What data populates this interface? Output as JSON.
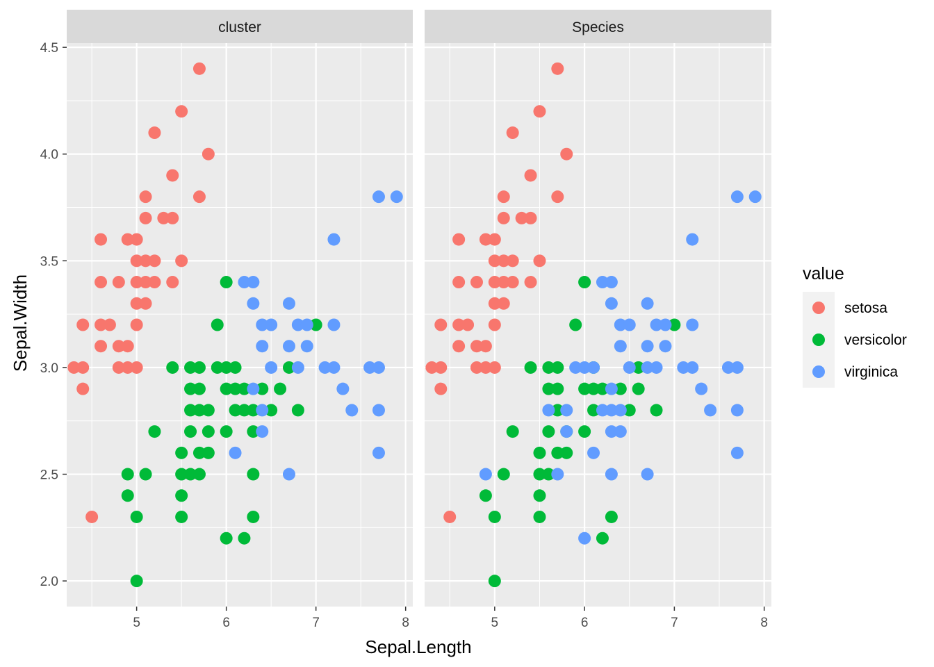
{
  "chart_data": {
    "type": "scatter",
    "xlabel": "Sepal.Length",
    "ylabel": "Sepal.Width",
    "xlim": [
      4.22,
      8.08
    ],
    "ylim": [
      1.88,
      4.52
    ],
    "x_ticks": [
      5,
      6,
      7,
      8
    ],
    "y_ticks": [
      "2.0",
      "2.5",
      "3.0",
      "3.5",
      "4.0",
      "4.5"
    ],
    "grid": true,
    "legend": {
      "title": "value",
      "position": "right",
      "entries": [
        {
          "name": "setosa",
          "color": "#F8766D"
        },
        {
          "name": "versicolor",
          "color": "#00BA38"
        },
        {
          "name": "virginica",
          "color": "#619CFF"
        }
      ]
    },
    "panels": [
      {
        "title": "cluster",
        "series": [
          {
            "name": "setosa",
            "color": "#F8766D",
            "points": [
              [
                5.7,
                4.4
              ],
              [
                5.5,
                4.2
              ],
              [
                5.2,
                4.1
              ],
              [
                5.8,
                4.0
              ],
              [
                5.4,
                3.9
              ],
              [
                5.1,
                3.8
              ],
              [
                5.7,
                3.8
              ],
              [
                5.1,
                3.7
              ],
              [
                5.3,
                3.7
              ],
              [
                5.4,
                3.7
              ],
              [
                4.6,
                3.6
              ],
              [
                4.9,
                3.6
              ],
              [
                5.0,
                3.6
              ],
              [
                5.0,
                3.5
              ],
              [
                5.1,
                3.5
              ],
              [
                5.2,
                3.5
              ],
              [
                5.5,
                3.5
              ],
              [
                4.6,
                3.4
              ],
              [
                4.8,
                3.4
              ],
              [
                5.0,
                3.4
              ],
              [
                5.1,
                3.4
              ],
              [
                5.2,
                3.4
              ],
              [
                5.4,
                3.4
              ],
              [
                5.0,
                3.3
              ],
              [
                5.1,
                3.3
              ],
              [
                4.4,
                3.2
              ],
              [
                4.6,
                3.2
              ],
              [
                4.7,
                3.2
              ],
              [
                5.0,
                3.2
              ],
              [
                4.6,
                3.1
              ],
              [
                4.8,
                3.1
              ],
              [
                4.9,
                3.1
              ],
              [
                4.3,
                3.0
              ],
              [
                4.4,
                3.0
              ],
              [
                4.8,
                3.0
              ],
              [
                4.9,
                3.0
              ],
              [
                5.0,
                3.0
              ],
              [
                4.4,
                2.9
              ],
              [
                4.5,
                2.3
              ]
            ]
          },
          {
            "name": "versicolor",
            "color": "#00BA38",
            "points": [
              [
                6.0,
                3.4
              ],
              [
                5.9,
                3.2
              ],
              [
                7.0,
                3.2
              ],
              [
                5.4,
                3.0
              ],
              [
                5.6,
                3.0
              ],
              [
                5.7,
                3.0
              ],
              [
                5.9,
                3.0
              ],
              [
                6.0,
                3.0
              ],
              [
                6.1,
                3.0
              ],
              [
                6.7,
                3.0
              ],
              [
                5.6,
                2.9
              ],
              [
                5.7,
                2.9
              ],
              [
                6.0,
                2.9
              ],
              [
                6.1,
                2.9
              ],
              [
                6.2,
                2.9
              ],
              [
                6.4,
                2.9
              ],
              [
                6.6,
                2.9
              ],
              [
                5.6,
                2.8
              ],
              [
                5.7,
                2.8
              ],
              [
                5.8,
                2.8
              ],
              [
                6.1,
                2.8
              ],
              [
                6.2,
                2.8
              ],
              [
                6.3,
                2.8
              ],
              [
                6.5,
                2.8
              ],
              [
                6.8,
                2.8
              ],
              [
                5.2,
                2.7
              ],
              [
                5.6,
                2.7
              ],
              [
                5.8,
                2.7
              ],
              [
                6.0,
                2.7
              ],
              [
                6.3,
                2.7
              ],
              [
                5.5,
                2.6
              ],
              [
                5.7,
                2.6
              ],
              [
                5.8,
                2.6
              ],
              [
                4.9,
                2.5
              ],
              [
                5.1,
                2.5
              ],
              [
                5.5,
                2.5
              ],
              [
                5.6,
                2.5
              ],
              [
                5.7,
                2.5
              ],
              [
                6.3,
                2.5
              ],
              [
                4.9,
                2.4
              ],
              [
                5.5,
                2.4
              ],
              [
                5.0,
                2.3
              ],
              [
                5.5,
                2.3
              ],
              [
                6.3,
                2.3
              ],
              [
                6.0,
                2.2
              ],
              [
                6.2,
                2.2
              ],
              [
                5.0,
                2.0
              ]
            ]
          },
          {
            "name": "virginica",
            "color": "#619CFF",
            "points": [
              [
                7.7,
                3.8
              ],
              [
                7.9,
                3.8
              ],
              [
                7.2,
                3.6
              ],
              [
                6.2,
                3.4
              ],
              [
                6.3,
                3.4
              ],
              [
                6.3,
                3.3
              ],
              [
                6.7,
                3.3
              ],
              [
                6.4,
                3.2
              ],
              [
                6.5,
                3.2
              ],
              [
                6.8,
                3.2
              ],
              [
                6.9,
                3.2
              ],
              [
                7.2,
                3.2
              ],
              [
                6.4,
                3.1
              ],
              [
                6.7,
                3.1
              ],
              [
                6.9,
                3.1
              ],
              [
                6.5,
                3.0
              ],
              [
                6.8,
                3.0
              ],
              [
                7.1,
                3.0
              ],
              [
                7.2,
                3.0
              ],
              [
                7.6,
                3.0
              ],
              [
                7.7,
                3.0
              ],
              [
                6.3,
                2.9
              ],
              [
                7.3,
                2.9
              ],
              [
                6.4,
                2.8
              ],
              [
                7.4,
                2.8
              ],
              [
                7.7,
                2.8
              ],
              [
                6.4,
                2.7
              ],
              [
                6.1,
                2.6
              ],
              [
                7.7,
                2.6
              ],
              [
                6.7,
                2.5
              ]
            ]
          }
        ]
      },
      {
        "title": "Species",
        "series": [
          {
            "name": "setosa",
            "color": "#F8766D",
            "points": [
              [
                5.7,
                4.4
              ],
              [
                5.5,
                4.2
              ],
              [
                5.2,
                4.1
              ],
              [
                5.8,
                4.0
              ],
              [
                5.4,
                3.9
              ],
              [
                5.1,
                3.8
              ],
              [
                5.7,
                3.8
              ],
              [
                5.1,
                3.7
              ],
              [
                5.3,
                3.7
              ],
              [
                5.4,
                3.7
              ],
              [
                4.6,
                3.6
              ],
              [
                4.9,
                3.6
              ],
              [
                5.0,
                3.6
              ],
              [
                5.0,
                3.5
              ],
              [
                5.1,
                3.5
              ],
              [
                5.2,
                3.5
              ],
              [
                5.5,
                3.5
              ],
              [
                4.6,
                3.4
              ],
              [
                4.8,
                3.4
              ],
              [
                5.0,
                3.4
              ],
              [
                5.1,
                3.4
              ],
              [
                5.2,
                3.4
              ],
              [
                5.4,
                3.4
              ],
              [
                5.0,
                3.3
              ],
              [
                5.1,
                3.3
              ],
              [
                4.4,
                3.2
              ],
              [
                4.6,
                3.2
              ],
              [
                4.7,
                3.2
              ],
              [
                5.0,
                3.2
              ],
              [
                4.6,
                3.1
              ],
              [
                4.8,
                3.1
              ],
              [
                4.9,
                3.1
              ],
              [
                4.3,
                3.0
              ],
              [
                4.4,
                3.0
              ],
              [
                4.8,
                3.0
              ],
              [
                4.9,
                3.0
              ],
              [
                5.0,
                3.0
              ],
              [
                4.4,
                2.9
              ],
              [
                4.5,
                2.3
              ]
            ]
          },
          {
            "name": "versicolor",
            "color": "#00BA38",
            "points": [
              [
                6.0,
                3.4
              ],
              [
                5.9,
                3.2
              ],
              [
                7.0,
                3.2
              ],
              [
                5.4,
                3.0
              ],
              [
                5.6,
                3.0
              ],
              [
                5.7,
                3.0
              ],
              [
                6.1,
                3.0
              ],
              [
                6.6,
                3.0
              ],
              [
                5.6,
                2.9
              ],
              [
                5.7,
                2.9
              ],
              [
                6.0,
                2.9
              ],
              [
                6.1,
                2.9
              ],
              [
                6.2,
                2.9
              ],
              [
                6.4,
                2.9
              ],
              [
                6.6,
                2.9
              ],
              [
                5.7,
                2.8
              ],
              [
                6.1,
                2.8
              ],
              [
                6.5,
                2.8
              ],
              [
                6.8,
                2.8
              ],
              [
                5.2,
                2.7
              ],
              [
                5.6,
                2.7
              ],
              [
                5.8,
                2.7
              ],
              [
                6.0,
                2.7
              ],
              [
                5.5,
                2.6
              ],
              [
                5.7,
                2.6
              ],
              [
                5.8,
                2.6
              ],
              [
                5.1,
                2.5
              ],
              [
                5.5,
                2.5
              ],
              [
                5.6,
                2.5
              ],
              [
                4.9,
                2.4
              ],
              [
                5.5,
                2.4
              ],
              [
                5.0,
                2.3
              ],
              [
                5.5,
                2.3
              ],
              [
                6.3,
                2.3
              ],
              [
                6.2,
                2.2
              ],
              [
                5.0,
                2.0
              ]
            ]
          },
          {
            "name": "virginica",
            "color": "#619CFF",
            "points": [
              [
                7.7,
                3.8
              ],
              [
                7.9,
                3.8
              ],
              [
                7.2,
                3.6
              ],
              [
                6.2,
                3.4
              ],
              [
                6.3,
                3.4
              ],
              [
                6.3,
                3.3
              ],
              [
                6.7,
                3.3
              ],
              [
                6.4,
                3.2
              ],
              [
                6.5,
                3.2
              ],
              [
                6.8,
                3.2
              ],
              [
                6.9,
                3.2
              ],
              [
                7.2,
                3.2
              ],
              [
                6.4,
                3.1
              ],
              [
                6.7,
                3.1
              ],
              [
                6.9,
                3.1
              ],
              [
                5.9,
                3.0
              ],
              [
                6.0,
                3.0
              ],
              [
                6.1,
                3.0
              ],
              [
                6.5,
                3.0
              ],
              [
                6.7,
                3.0
              ],
              [
                6.8,
                3.0
              ],
              [
                7.1,
                3.0
              ],
              [
                7.2,
                3.0
              ],
              [
                7.6,
                3.0
              ],
              [
                7.7,
                3.0
              ],
              [
                6.3,
                2.9
              ],
              [
                7.3,
                2.9
              ],
              [
                5.6,
                2.8
              ],
              [
                5.8,
                2.8
              ],
              [
                6.2,
                2.8
              ],
              [
                6.3,
                2.8
              ],
              [
                6.4,
                2.8
              ],
              [
                7.4,
                2.8
              ],
              [
                7.7,
                2.8
              ],
              [
                5.8,
                2.7
              ],
              [
                6.3,
                2.7
              ],
              [
                6.4,
                2.7
              ],
              [
                6.1,
                2.6
              ],
              [
                7.7,
                2.6
              ],
              [
                4.9,
                2.5
              ],
              [
                5.7,
                2.5
              ],
              [
                6.3,
                2.5
              ],
              [
                6.7,
                2.5
              ],
              [
                6.0,
                2.2
              ]
            ]
          }
        ]
      }
    ]
  }
}
